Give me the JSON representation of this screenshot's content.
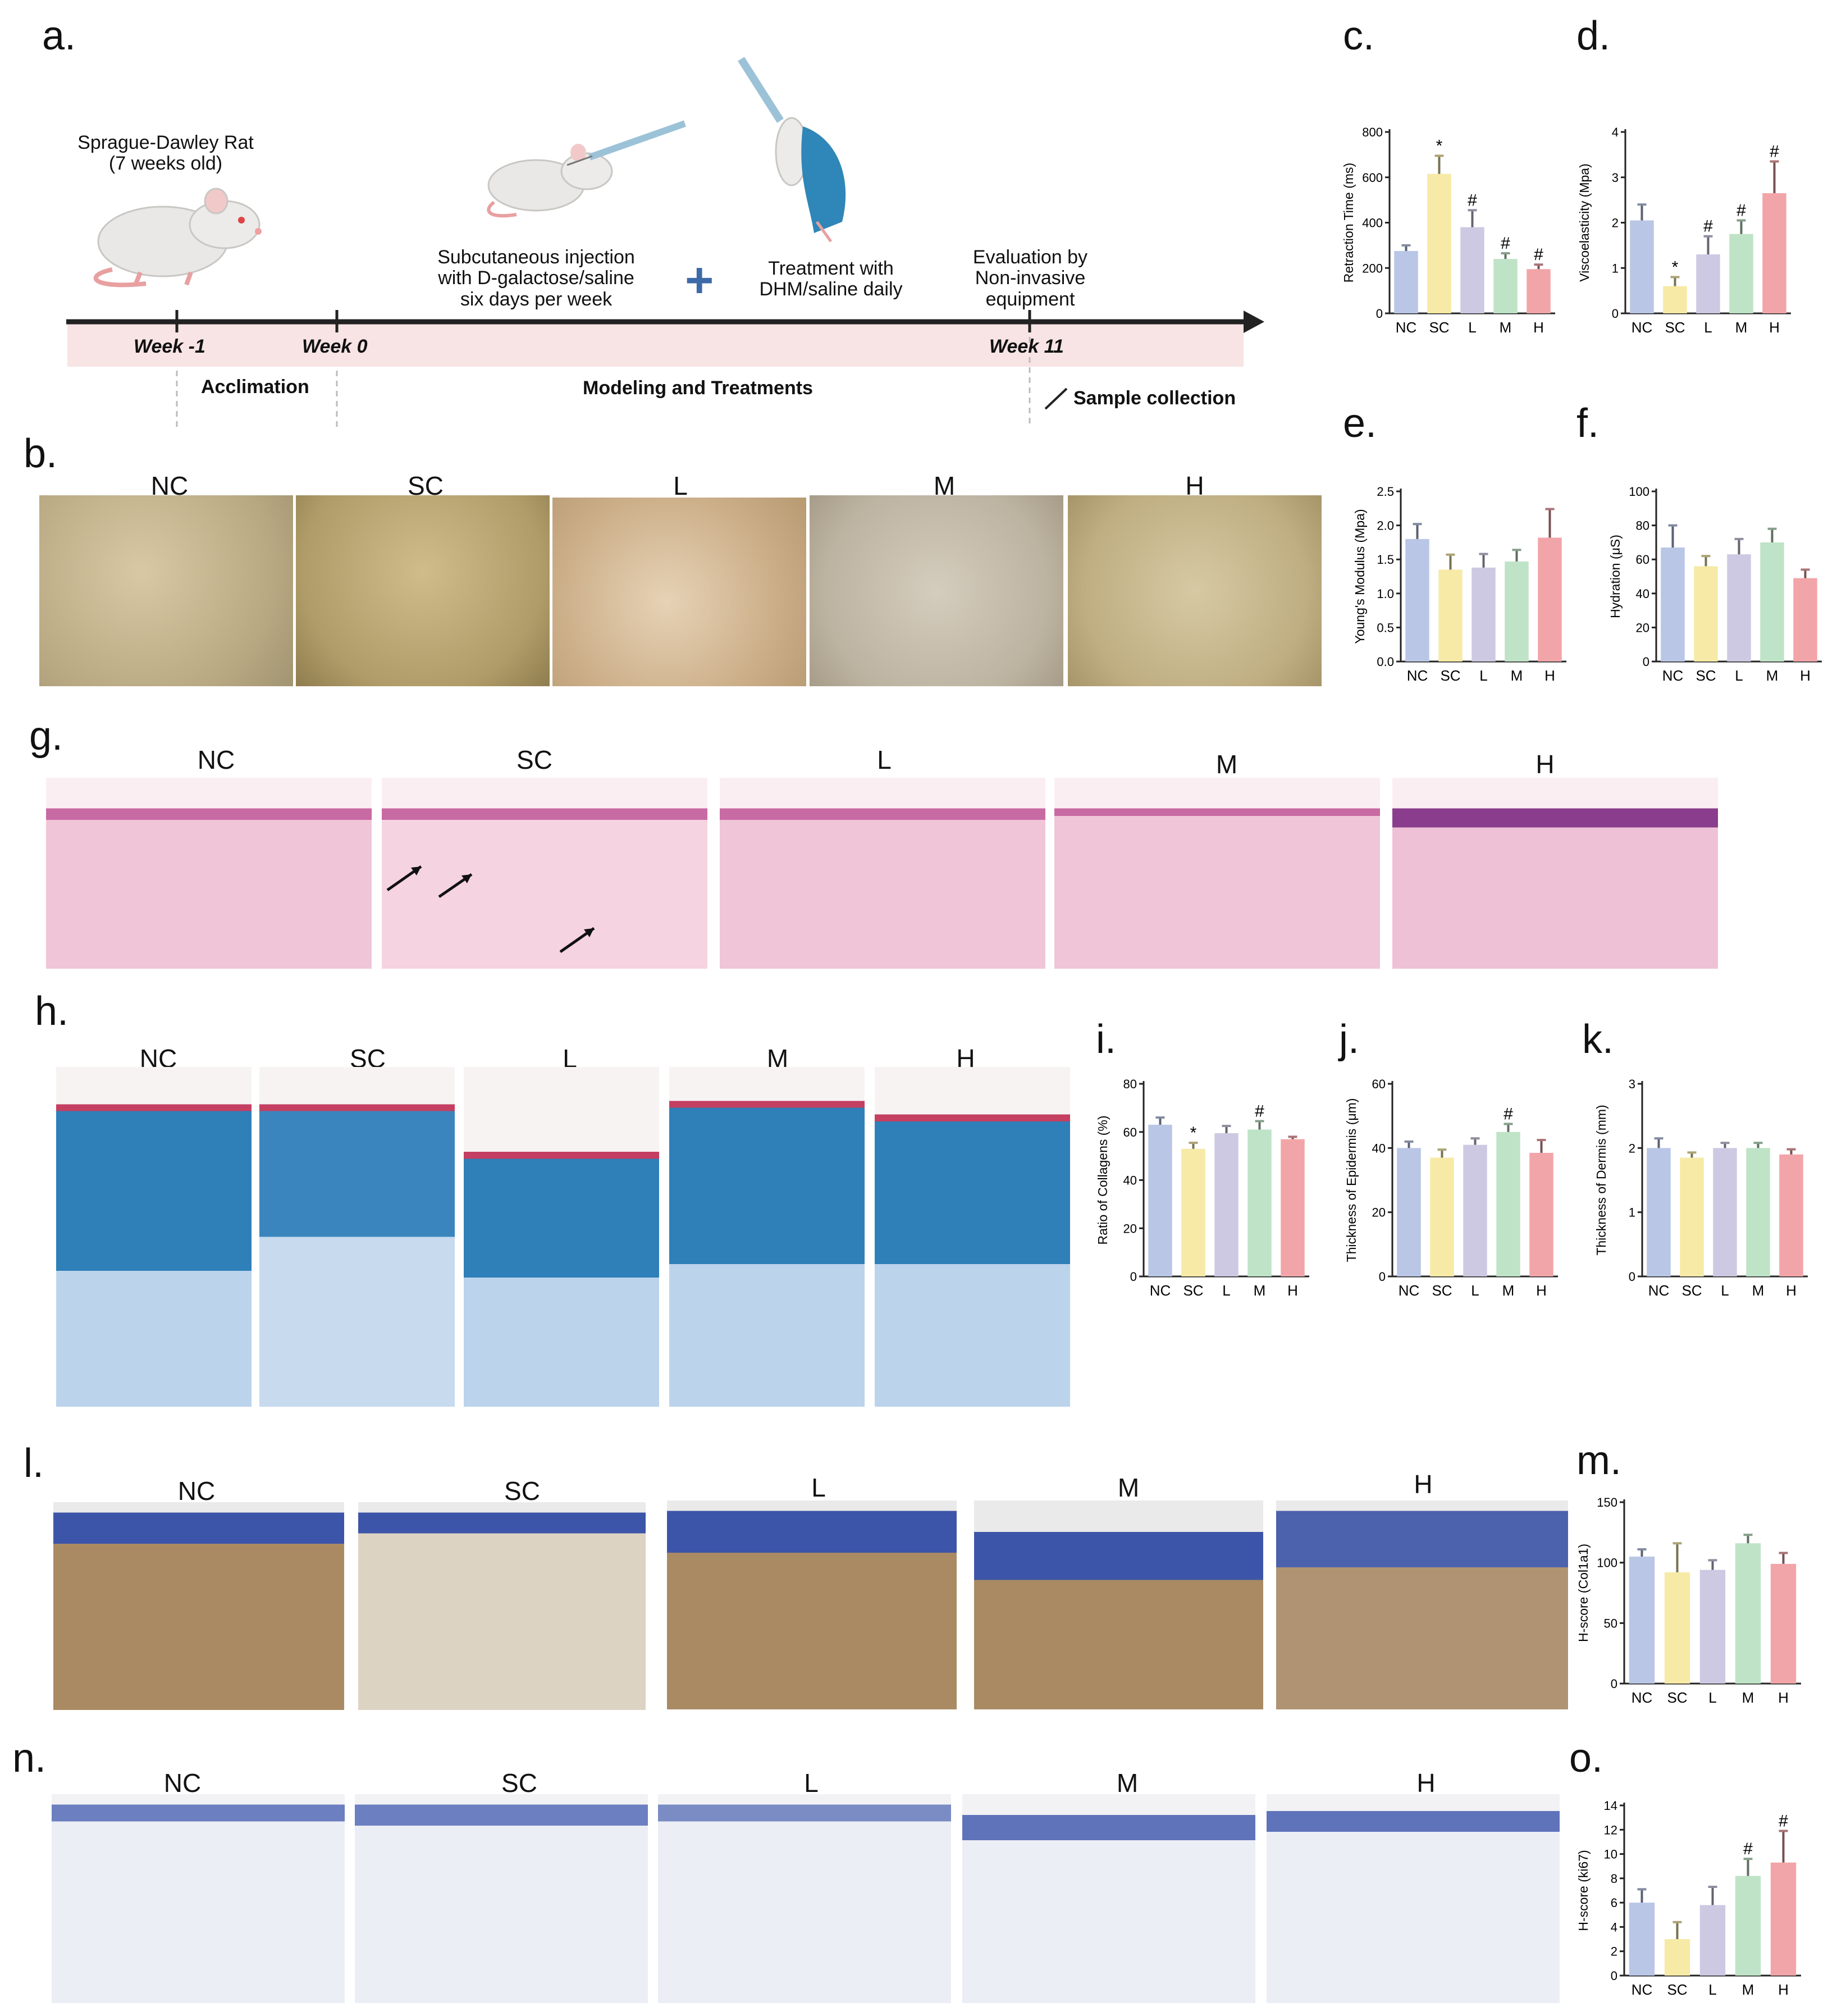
{
  "panels": {
    "a": "a.",
    "b": "b.",
    "c": "c.",
    "d": "d.",
    "e": "e.",
    "f": "f.",
    "g": "g.",
    "h": "h.",
    "i": "i.",
    "j": "j.",
    "k": "k.",
    "l": "l.",
    "m": "m.",
    "n": "n.",
    "o": "o."
  },
  "timeline": {
    "rat_label_1": "Sprague-Dawley  Rat",
    "rat_label_2": "(7 weeks old)",
    "injection_1": "Subcutaneous injection",
    "injection_2": "with D-galactose/saline",
    "injection_3": "six days per week",
    "plus": "+",
    "treatment_1": "Treatment with",
    "treatment_2": "DHM/saline daily",
    "evaluation_1": "Evaluation by",
    "evaluation_2": "Non-invasive",
    "evaluation_3": "equipment",
    "week_m1": "Week -1",
    "week_0": "Week 0",
    "week_11": "Week 11",
    "acclimation": "Acclimation",
    "modeling": "Modeling and Treatments",
    "sample": "Sample collection"
  },
  "groups": [
    "NC",
    "SC",
    "L",
    "M",
    "H"
  ],
  "group_colors": [
    "#b9c6e6",
    "#f6eaa6",
    "#cdc9e3",
    "#bfe3c6",
    "#f2a5a8"
  ],
  "chart_data": [
    {
      "id": "c",
      "type": "bar",
      "categories": [
        "NC",
        "SC",
        "L",
        "M",
        "H"
      ],
      "values": [
        275,
        615,
        380,
        240,
        195
      ],
      "errors": [
        25,
        80,
        75,
        25,
        20
      ],
      "marks": [
        "",
        "*",
        "#",
        "#",
        "#"
      ],
      "ylabel": "Retraction Time (ms)",
      "ylim": [
        0,
        800
      ],
      "ticks": [
        0,
        200,
        400,
        600,
        800
      ]
    },
    {
      "id": "d",
      "type": "bar",
      "categories": [
        "NC",
        "SC",
        "L",
        "M",
        "H"
      ],
      "values": [
        2.05,
        0.6,
        1.3,
        1.75,
        2.65
      ],
      "errors": [
        0.35,
        0.2,
        0.4,
        0.3,
        0.7
      ],
      "marks": [
        "",
        "*",
        "#",
        "#",
        "#"
      ],
      "ylabel": "Viscoelasticity (Mpa)",
      "ylim": [
        0,
        4
      ],
      "ticks": [
        0,
        1,
        2,
        3,
        4
      ]
    },
    {
      "id": "e",
      "type": "bar",
      "categories": [
        "NC",
        "SC",
        "L",
        "M",
        "H"
      ],
      "values": [
        1.8,
        1.35,
        1.38,
        1.47,
        1.82
      ],
      "errors": [
        0.22,
        0.22,
        0.2,
        0.17,
        0.42
      ],
      "marks": [
        "",
        "",
        "",
        "",
        ""
      ],
      "ylabel": "Young's Modulus (Mpa)",
      "ylim": [
        0,
        2.5
      ],
      "ticks": [
        0.0,
        0.5,
        1.0,
        1.5,
        2.0,
        2.5
      ]
    },
    {
      "id": "f",
      "type": "bar",
      "categories": [
        "NC",
        "SC",
        "L",
        "M",
        "H"
      ],
      "values": [
        67,
        56,
        63,
        70,
        49
      ],
      "errors": [
        13,
        6,
        9,
        8,
        5
      ],
      "marks": [
        "",
        "",
        "",
        "",
        ""
      ],
      "ylabel": "Hydration (μS)",
      "ylim": [
        0,
        100
      ],
      "ticks": [
        0,
        20,
        40,
        60,
        80,
        100
      ]
    },
    {
      "id": "i",
      "type": "bar",
      "categories": [
        "NC",
        "SC",
        "L",
        "M",
        "H"
      ],
      "values": [
        63,
        53,
        59.5,
        61,
        57
      ],
      "errors": [
        3,
        2.5,
        3,
        3.5,
        1
      ],
      "marks": [
        "",
        "*",
        "",
        "#",
        ""
      ],
      "ylabel": "Ratio of Collagens (%)",
      "ylim": [
        0,
        80
      ],
      "ticks": [
        0,
        20,
        40,
        60,
        80
      ]
    },
    {
      "id": "j",
      "type": "bar",
      "categories": [
        "NC",
        "SC",
        "L",
        "M",
        "H"
      ],
      "values": [
        40,
        37,
        41,
        45,
        38.5
      ],
      "errors": [
        2,
        2.5,
        2,
        2.5,
        4
      ],
      "marks": [
        "",
        "",
        "",
        "#",
        ""
      ],
      "ylabel": "Thickness of Epidermis (μm)",
      "ylim": [
        0,
        60
      ],
      "ticks": [
        0,
        20,
        40,
        60
      ]
    },
    {
      "id": "k",
      "type": "bar",
      "categories": [
        "NC",
        "SC",
        "L",
        "M",
        "H"
      ],
      "values": [
        2.0,
        1.85,
        2.0,
        2.0,
        1.9
      ],
      "errors": [
        0.15,
        0.08,
        0.08,
        0.08,
        0.08
      ],
      "marks": [
        "",
        "",
        "",
        "",
        ""
      ],
      "ylabel": "Thickness of Dermis (mm)",
      "ylim": [
        0,
        3
      ],
      "ticks": [
        0,
        1,
        2,
        3
      ]
    },
    {
      "id": "m",
      "type": "bar",
      "categories": [
        "NC",
        "SC",
        "L",
        "M",
        "H"
      ],
      "values": [
        105,
        92,
        94,
        116,
        99
      ],
      "errors": [
        6,
        24,
        8,
        7,
        9
      ],
      "marks": [
        "",
        "",
        "",
        "",
        ""
      ],
      "ylabel": "H-score (Col1a1)",
      "ylim": [
        0,
        150
      ],
      "ticks": [
        0,
        50,
        100,
        150
      ]
    },
    {
      "id": "o",
      "type": "bar",
      "categories": [
        "NC",
        "SC",
        "L",
        "M",
        "H"
      ],
      "values": [
        6,
        3,
        5.8,
        8.2,
        9.3
      ],
      "errors": [
        1.1,
        1.4,
        1.5,
        1.4,
        2.6
      ],
      "marks": [
        "",
        "",
        "",
        "#",
        "#"
      ],
      "ylabel": "H-score (ki67)",
      "ylim": [
        0,
        14
      ],
      "ticks": [
        0,
        2,
        4,
        6,
        8,
        10,
        12,
        14
      ]
    }
  ]
}
